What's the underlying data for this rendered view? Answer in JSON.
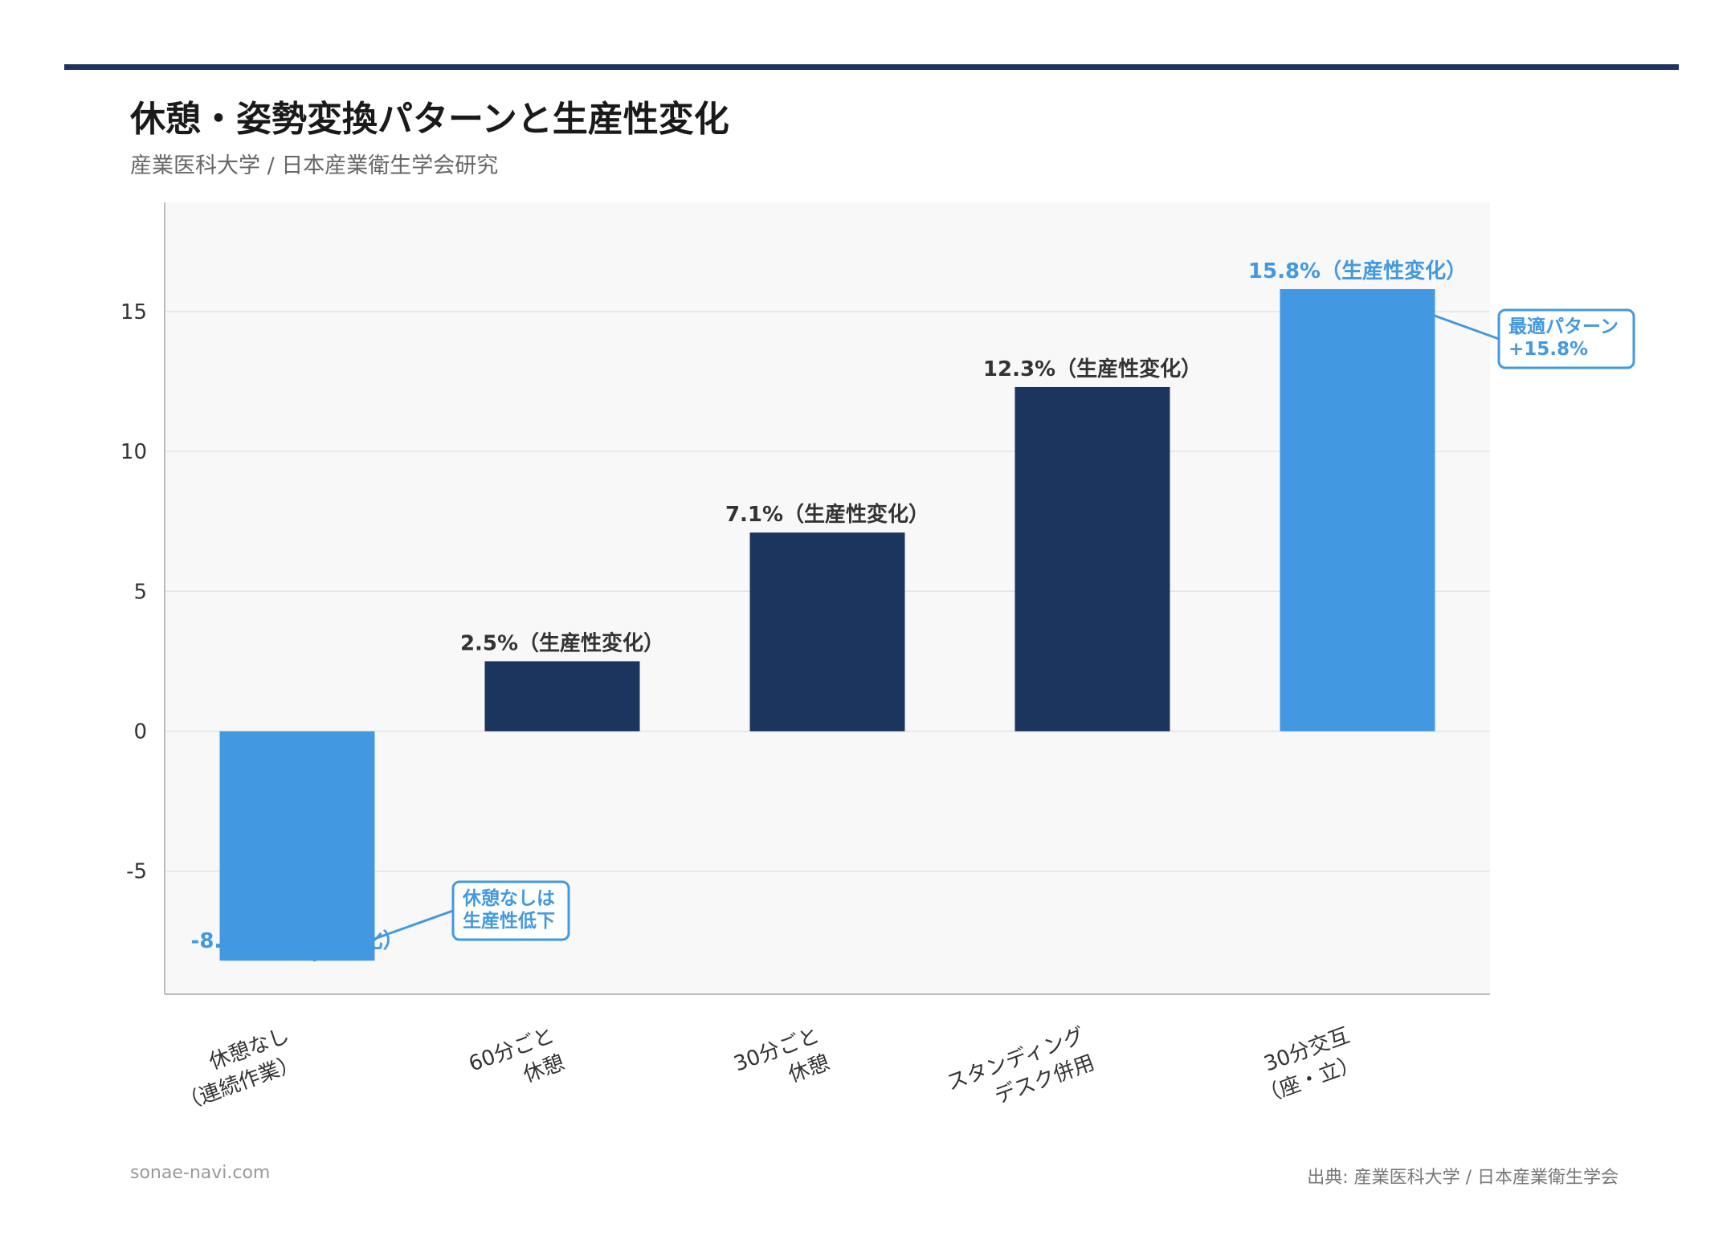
{
  "title": "休憩・姿勢変換パターンと生産性変化",
  "subtitle": "産業医科大学 / 日本産業衛生学会研究",
  "footer": {
    "site": "sonae-navi.com",
    "source": "出典: 産業医科大学 / 日本産業衛生学会"
  },
  "colors": {
    "dark_bar": "#1c355e",
    "highlight_bar": "#4299e1",
    "plot_bg": "#f8f8f8",
    "grid": "#e4e4e4"
  },
  "chart_data": {
    "type": "bar",
    "categories": [
      [
        "休憩なし",
        "（連続作業）"
      ],
      [
        "60分ごと",
        "休憩"
      ],
      [
        "30分ごと",
        "休憩"
      ],
      [
        "スタンディング",
        "デスク併用"
      ],
      [
        "30分交互",
        "（座・立）"
      ]
    ],
    "values": [
      -8.2,
      2.5,
      7.1,
      12.3,
      15.8
    ],
    "data_labels": [
      "-8.2%（生産性変化）",
      "2.5%（生産性変化）",
      "7.1%（生産性変化）",
      "12.3%（生産性変化）",
      "15.8%（生産性変化）"
    ],
    "highlighted": [
      true,
      false,
      false,
      false,
      true
    ],
    "ylim": [
      -9.4,
      18.9
    ],
    "yticks": [
      -5,
      0,
      5,
      10,
      15
    ],
    "grid": true,
    "annotations": [
      {
        "bar": 0,
        "lines": [
          "休憩なしは",
          "生産性低下"
        ]
      },
      {
        "bar": 4,
        "lines": [
          "最適パターン",
          "+15.8%"
        ]
      }
    ]
  }
}
